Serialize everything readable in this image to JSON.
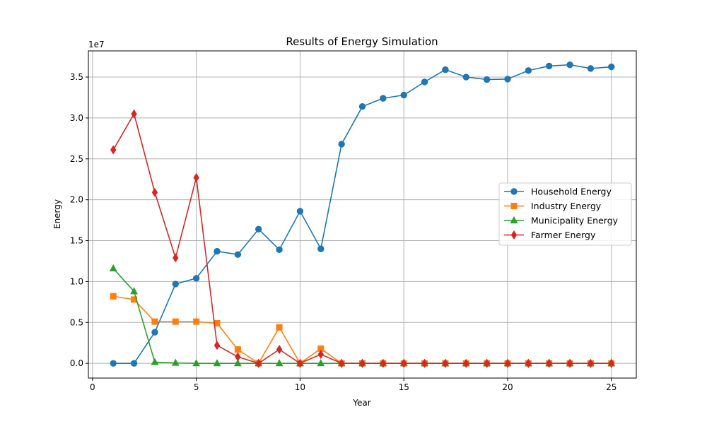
{
  "chart_data": {
    "type": "line",
    "title": "Results of Energy Simulation",
    "xlabel": "Year",
    "ylabel": "Energy",
    "y_offset_label": "1e7",
    "xlim": [
      -0.2,
      26.2
    ],
    "ylim": [
      -0.18,
      3.82
    ],
    "x_ticks": [
      0,
      5,
      10,
      15,
      20,
      25
    ],
    "y_ticks": [
      0.0,
      0.5,
      1.0,
      1.5,
      2.0,
      2.5,
      3.0,
      3.5
    ],
    "x_tick_labels": [
      "0",
      "5",
      "10",
      "15",
      "20",
      "25"
    ],
    "y_tick_labels": [
      "0.0",
      "0.5",
      "1.0",
      "1.5",
      "2.0",
      "2.5",
      "3.0",
      "3.5"
    ],
    "grid": true,
    "legend_position": "center-right",
    "x": [
      1,
      2,
      3,
      4,
      5,
      6,
      7,
      8,
      9,
      10,
      11,
      12,
      13,
      14,
      15,
      16,
      17,
      18,
      19,
      20,
      21,
      22,
      23,
      24,
      25
    ],
    "series": [
      {
        "name": "Household Energy",
        "color": "#1f77b4",
        "marker": "circle",
        "values": [
          0.0,
          0.0,
          0.38,
          0.97,
          1.04,
          1.37,
          1.33,
          1.64,
          1.39,
          1.86,
          1.4,
          2.68,
          3.14,
          3.24,
          3.28,
          3.44,
          3.59,
          3.5,
          3.47,
          3.475,
          3.58,
          3.635,
          3.65,
          3.605,
          3.625
        ]
      },
      {
        "name": "Industry Energy",
        "color": "#ff7f0e",
        "marker": "square",
        "values": [
          0.82,
          0.78,
          0.51,
          0.51,
          0.51,
          0.49,
          0.17,
          0.0,
          0.44,
          0.0,
          0.18,
          0.0,
          0.0,
          0.0,
          0.0,
          0.0,
          0.0,
          0.0,
          0.0,
          0.0,
          0.0,
          0.0,
          0.0,
          0.0,
          0.0
        ]
      },
      {
        "name": "Municipality Energy",
        "color": "#2ca02c",
        "marker": "triangle",
        "values": [
          1.16,
          0.88,
          0.015,
          0.005,
          0.0,
          0.0,
          0.0,
          0.0,
          0.0,
          0.0,
          0.0,
          0.0,
          0.0,
          0.0,
          0.0,
          0.0,
          0.0,
          0.0,
          0.0,
          0.0,
          0.0,
          0.0,
          0.0,
          0.0,
          0.0
        ]
      },
      {
        "name": "Farmer Energy",
        "color": "#d62728",
        "marker": "diamond",
        "values": [
          2.61,
          3.05,
          2.09,
          1.29,
          2.27,
          0.22,
          0.08,
          0.0,
          0.17,
          0.0,
          0.11,
          0.0,
          0.0,
          0.0,
          0.0,
          0.0,
          0.0,
          0.0,
          0.0,
          0.0,
          0.0,
          0.0,
          0.0,
          0.0,
          0.0
        ]
      }
    ]
  }
}
